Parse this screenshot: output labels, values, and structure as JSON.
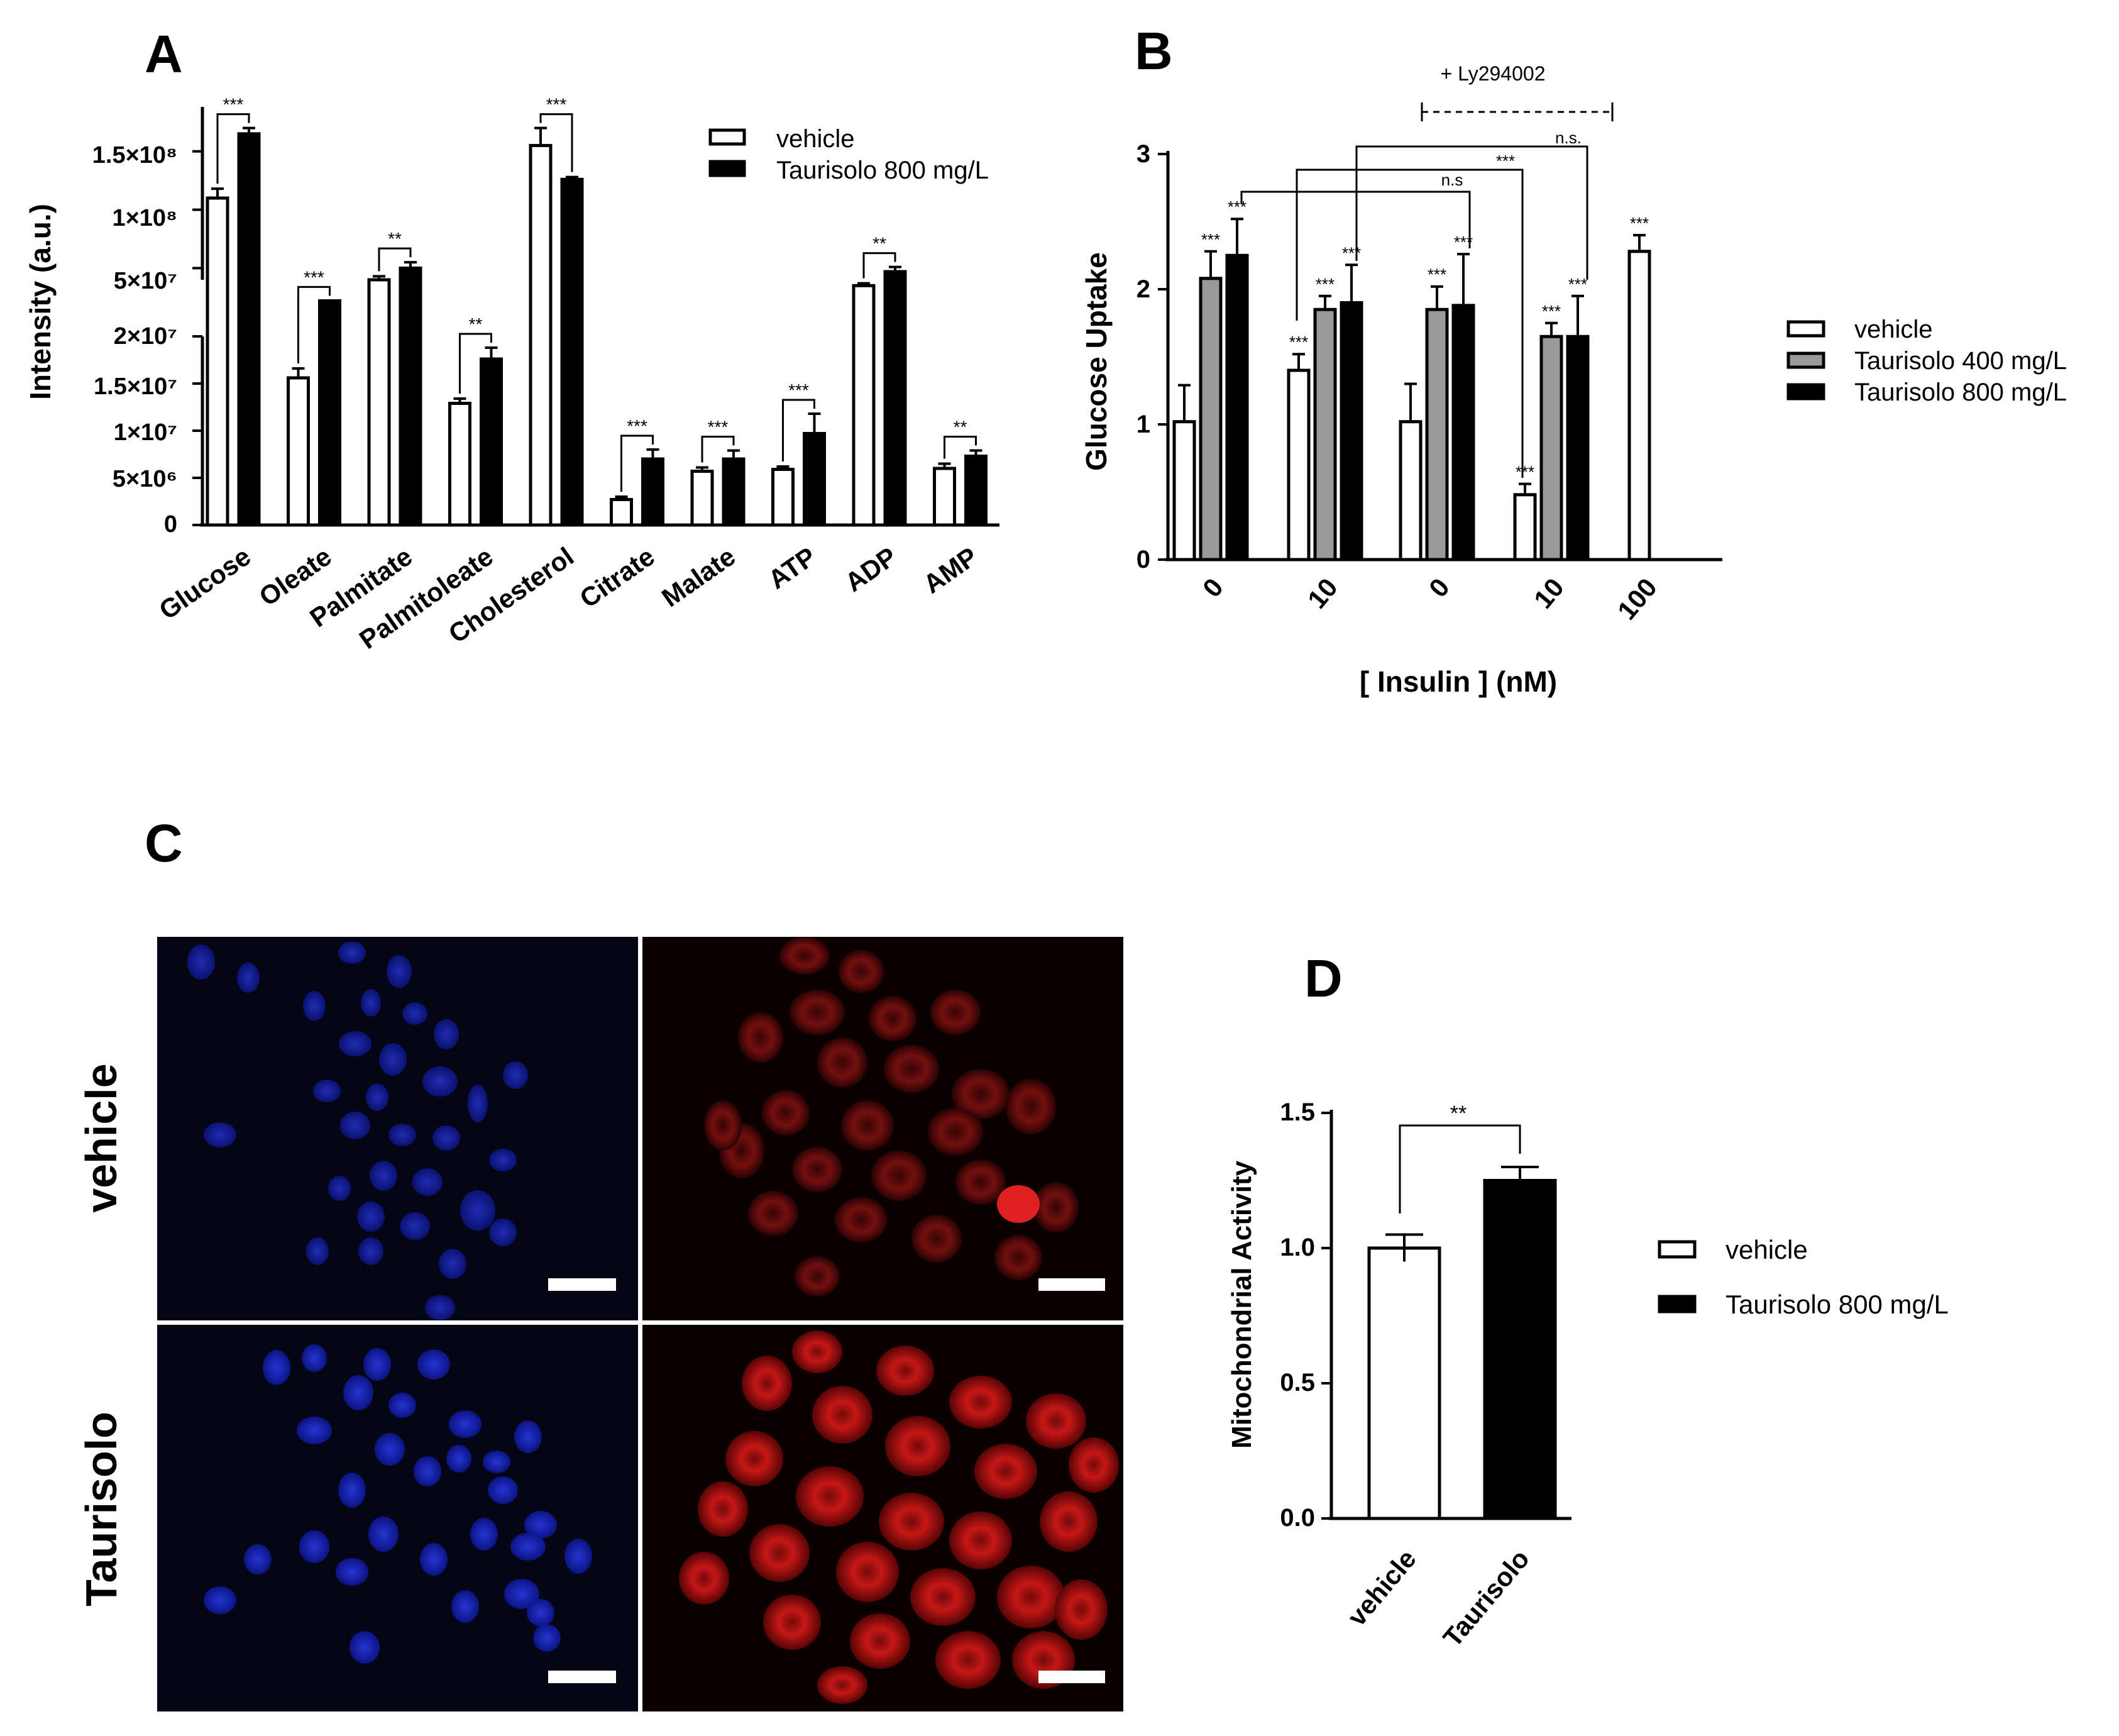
{
  "panels": {
    "A": {
      "letter": "A"
    },
    "B": {
      "letter": "B"
    },
    "C": {
      "letter": "C"
    },
    "D": {
      "letter": "D"
    }
  },
  "colors": {
    "vehicle": "#ffffff",
    "t400": "#9a9a9a",
    "t800": "#000000",
    "axis": "#000000",
    "nuclei_blue": "#1f2fd6",
    "mito_red": "#e21a1a",
    "scale_bar": "#ffffff"
  },
  "chart_data": [
    {
      "panel": "A",
      "type": "bar",
      "ylabel": "Intensity (a.u.)",
      "yaxis": "broken",
      "lower_ylim": [
        0,
        20000000
      ],
      "upper_ylim": [
        40000000,
        180000000
      ],
      "lower_ticks": [
        "0",
        "5×10⁶",
        "1×10⁷",
        "1.5×10⁷",
        "2×10⁷"
      ],
      "upper_ticks": [
        "5×10⁷",
        "1×10⁸",
        "1.5×10⁸"
      ],
      "categories": [
        "Glucose",
        "Oleate",
        "Palmitate",
        "Palmitoleate",
        "Cholesterol",
        "Citrate",
        "Malate",
        "ATP",
        "ADP",
        "AMP"
      ],
      "legend": [
        "vehicle",
        "Taurisolo 800 mg/L"
      ],
      "series": [
        {
          "name": "vehicle",
          "values": [
            110000000,
            15600000,
            40000000,
            12900000,
            155000000,
            2700000,
            5700000,
            5900000,
            35000000,
            6000000
          ],
          "errors": [
            8000000,
            1000000,
            3000000,
            500000,
            15000000,
            300000,
            400000,
            300000,
            2000000,
            500000
          ]
        },
        {
          "name": "Taurisolo 800 mg/L",
          "values": [
            165000000,
            22000000,
            50000000,
            17600000,
            126000000,
            7000000,
            7000000,
            9700000,
            47000000,
            7300000
          ],
          "errors": [
            5000000,
            0,
            5000000,
            1200000,
            2000000,
            1000000,
            900000,
            2100000,
            4000000,
            600000
          ]
        }
      ],
      "significance": [
        "***",
        "***",
        "**",
        "**",
        "***",
        "***",
        "***",
        "***",
        "**",
        "**"
      ]
    },
    {
      "panel": "B",
      "type": "bar",
      "ylabel": "Glucose Uptake",
      "xlabel": "[ Insulin ] (nM)",
      "ylim": [
        0,
        3
      ],
      "yticks": [
        "0",
        "1",
        "2",
        "3"
      ],
      "groups": [
        "0",
        "10",
        "0",
        "10",
        "100"
      ],
      "legend": [
        "vehicle",
        "Taurisolo 400 mg/L",
        "Taurisolo 800 mg/L"
      ],
      "series": [
        {
          "name": "vehicle",
          "values": [
            1.02,
            1.4,
            1.02,
            0.48,
            2.28
          ],
          "errors": [
            0.27,
            0.12,
            0.28,
            0.08,
            0.12
          ]
        },
        {
          "name": "Taurisolo 400 mg/L",
          "values": [
            2.08,
            1.85,
            1.85,
            1.65,
            null
          ],
          "errors": [
            0.2,
            0.1,
            0.17,
            0.1,
            null
          ]
        },
        {
          "name": "Taurisolo 800 mg/L",
          "values": [
            2.25,
            1.9,
            1.88,
            1.65,
            null
          ],
          "errors": [
            0.27,
            0.28,
            0.38,
            0.3,
            null
          ]
        }
      ],
      "bar_stars": [
        "***",
        "***",
        "***",
        "***",
        "***",
        "***",
        "***",
        "***",
        "***",
        "***",
        "***",
        "***",
        "***"
      ],
      "inhibitor_label": "+ Ly294002",
      "comparisons": [
        "n.s",
        "***",
        "n.s."
      ]
    },
    {
      "panel": "D",
      "type": "bar",
      "ylabel": "Mitochondrial Activity",
      "ylim": [
        0,
        1.5
      ],
      "yticks": [
        "0.0",
        "0.5",
        "1.0",
        "1.5"
      ],
      "categories": [
        "vehicle",
        "Taurisolo"
      ],
      "legend": [
        "vehicle",
        "Taurisolo 800 mg/L"
      ],
      "values": [
        1.0,
        1.25
      ],
      "errors": [
        0.05,
        0.05
      ],
      "significance": "**"
    }
  ],
  "microscopy": {
    "row_labels": [
      "vehicle",
      "Taurisolo"
    ]
  }
}
